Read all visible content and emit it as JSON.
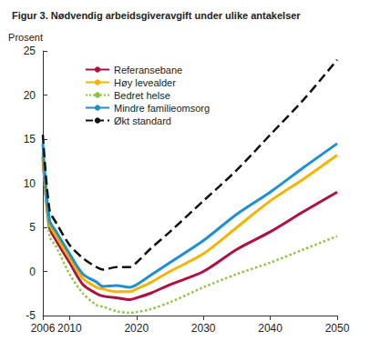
{
  "chart_data": {
    "type": "line",
    "title": "Figur 3. Nødvendig arbeidsgiveravgift under ulike antakelser",
    "y_label": "Prosent",
    "x": [
      2006,
      2007,
      2008,
      2010,
      2012,
      2014,
      2015,
      2017,
      2019,
      2020,
      2022,
      2025,
      2030,
      2035,
      2040,
      2045,
      2050
    ],
    "series": [
      {
        "name": "Referansebane",
        "color": "#b0103f",
        "line_style": "solid",
        "values": [
          13,
          5,
          3.5,
          1,
          -1.5,
          -2.5,
          -2.8,
          -3,
          -3.2,
          -3,
          -2.5,
          -1.5,
          0,
          2.5,
          4.5,
          6.8,
          9
        ]
      },
      {
        "name": "Høy levealder",
        "color": "#f5b400",
        "line_style": "solid",
        "values": [
          13.5,
          5.5,
          4,
          1.5,
          -0.8,
          -1.8,
          -2,
          -2.3,
          -2.3,
          -2,
          -1.3,
          0,
          2,
          5,
          8,
          10.5,
          13.2
        ]
      },
      {
        "name": "Bedret helse",
        "color": "#8cc63f",
        "line_style": "dotted",
        "values": [
          12.5,
          4,
          2.8,
          -0.3,
          -2.5,
          -3.8,
          -4,
          -4.5,
          -4.7,
          -4.6,
          -4.3,
          -3.5,
          -1.8,
          -0.3,
          1,
          2.5,
          4
        ]
      },
      {
        "name": "Mindre familieomsorg",
        "color": "#1f8fd4",
        "line_style": "solid",
        "values": [
          14.5,
          5.8,
          4.5,
          2,
          -0.3,
          -1.2,
          -1.7,
          -1.6,
          -1.8,
          -1.5,
          -0.5,
          1,
          3.5,
          6.5,
          9,
          11.8,
          14.5
        ]
      },
      {
        "name": "Økt standard",
        "color": "#111111",
        "line_style": "dashed",
        "values": [
          15.5,
          7,
          5.5,
          3,
          1.5,
          0.5,
          0.2,
          0.5,
          0.5,
          1,
          2.5,
          4.5,
          8,
          11.5,
          15.5,
          19.5,
          24
        ]
      }
    ],
    "xlim": [
      2006,
      2050
    ],
    "xticks": [
      2006,
      2010,
      2020,
      2030,
      2040,
      2050
    ],
    "ylim": [
      -5,
      25
    ],
    "yticks": [
      -5,
      0,
      5,
      10,
      15,
      20,
      25
    ],
    "grid": false,
    "legend": "upper left"
  }
}
